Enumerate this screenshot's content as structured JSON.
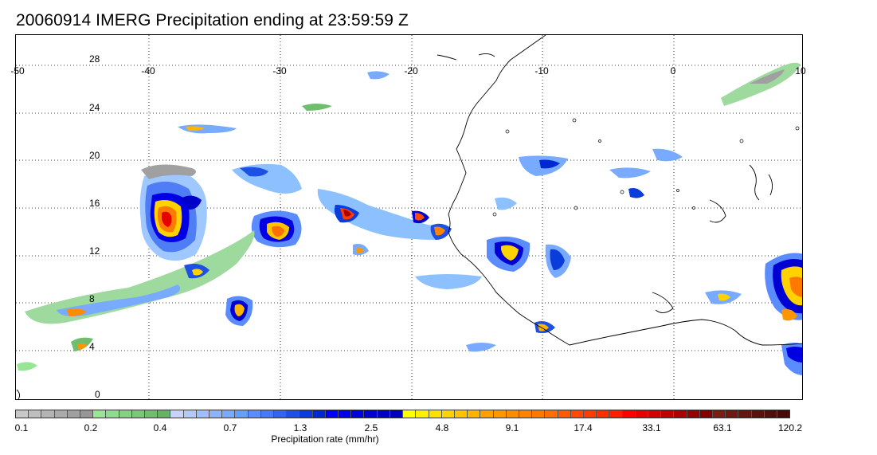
{
  "title": "20060914 IMERG Precipitation ending at 23:59:59 Z",
  "map": {
    "lon_range": [
      -50,
      10
    ],
    "lat_range": [
      -1.5,
      31
    ],
    "lon_labels": [
      "-50",
      "-40",
      "-30",
      "-20",
      "-10",
      "0",
      "10"
    ],
    "lat_labels": [
      "28",
      "24",
      "20",
      "16",
      "12",
      "8",
      "4",
      "0"
    ],
    "grid": "dotted",
    "coastline_color": "#000000"
  },
  "colorbar": {
    "label": "Precipitation rate (mm/hr)",
    "tick_labels": [
      "0.1",
      "0.2",
      "0.4",
      "0.7",
      "1.3",
      "2.5",
      "4.8",
      "9.1",
      "17.4",
      "33.1",
      "63.1",
      "120.2"
    ],
    "colors": [
      "#c8c8c8",
      "#bebebe",
      "#b4b4b4",
      "#aaaaaa",
      "#a0a0a0",
      "#969696",
      "#96e696",
      "#8cdc8c",
      "#82d282",
      "#78c878",
      "#6ebe6e",
      "#64b464",
      "#c8d2ff",
      "#b4c8fa",
      "#a0beff",
      "#8cb4fa",
      "#78aaff",
      "#64a0fa",
      "#5a8cff",
      "#4678fa",
      "#3264f0",
      "#1e50e6",
      "#0a3cdc",
      "#0028d2",
      "#0000ff",
      "#0000f0",
      "#0000e1",
      "#0000d2",
      "#0000c8",
      "#0000be",
      "#ffff00",
      "#fff000",
      "#ffe100",
      "#ffd200",
      "#ffc300",
      "#ffb400",
      "#ffa000",
      "#ff9600",
      "#ff8c00",
      "#ff8200",
      "#ff7800",
      "#ff6e00",
      "#ff5a00",
      "#ff4b00",
      "#ff3c00",
      "#ff2d00",
      "#ff1e00",
      "#ff0000",
      "#e60000",
      "#d20000",
      "#be0000",
      "#aa0000",
      "#960000",
      "#820000",
      "#7a1e14",
      "#6e1a12",
      "#641610",
      "#5a120e",
      "#500e0c",
      "#460a0a"
    ]
  }
}
